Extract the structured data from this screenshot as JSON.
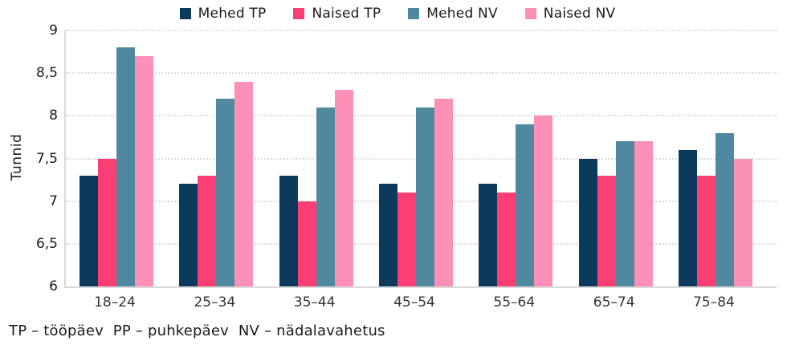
{
  "chart_data": {
    "type": "bar",
    "title": "",
    "ylabel": "Tunnid",
    "categories": [
      "18–24",
      "25–34",
      "35–44",
      "45–54",
      "55–64",
      "65–74",
      "75–84"
    ],
    "series": [
      {
        "name": "Mehed TP",
        "color": "#0b3a5d",
        "values": [
          7.3,
          7.2,
          7.3,
          7.2,
          7.2,
          7.5,
          7.6
        ]
      },
      {
        "name": "Naised TP",
        "color": "#fb3e74",
        "values": [
          7.5,
          7.3,
          7.0,
          7.1,
          7.1,
          7.3,
          7.3
        ]
      },
      {
        "name": "Mehed NV",
        "color": "#50899f",
        "values": [
          8.8,
          8.2,
          8.1,
          8.1,
          7.9,
          7.7,
          7.8
        ]
      },
      {
        "name": "Naised NV",
        "color": "#fc90b6",
        "values": [
          8.7,
          8.4,
          8.3,
          8.2,
          8.0,
          7.7,
          7.5
        ]
      }
    ],
    "ylim": [
      6,
      9
    ],
    "yticks": [
      {
        "value": 6,
        "label": "6"
      },
      {
        "value": 6.5,
        "label": "6,5"
      },
      {
        "value": 7,
        "label": "7"
      },
      {
        "value": 7.5,
        "label": "7,5"
      },
      {
        "value": 8,
        "label": "8"
      },
      {
        "value": 8.5,
        "label": "8,5"
      },
      {
        "value": 9,
        "label": "9"
      }
    ],
    "grid": "horizontal-dotted",
    "legend_position": "top"
  },
  "footnote": "TP – tööpäev  PP – puhkepäev  NV – nädalavahetus",
  "colors": {
    "axis": "#d9d9d9",
    "grid": "#dcdcdc",
    "text": "#1a1a1a"
  }
}
